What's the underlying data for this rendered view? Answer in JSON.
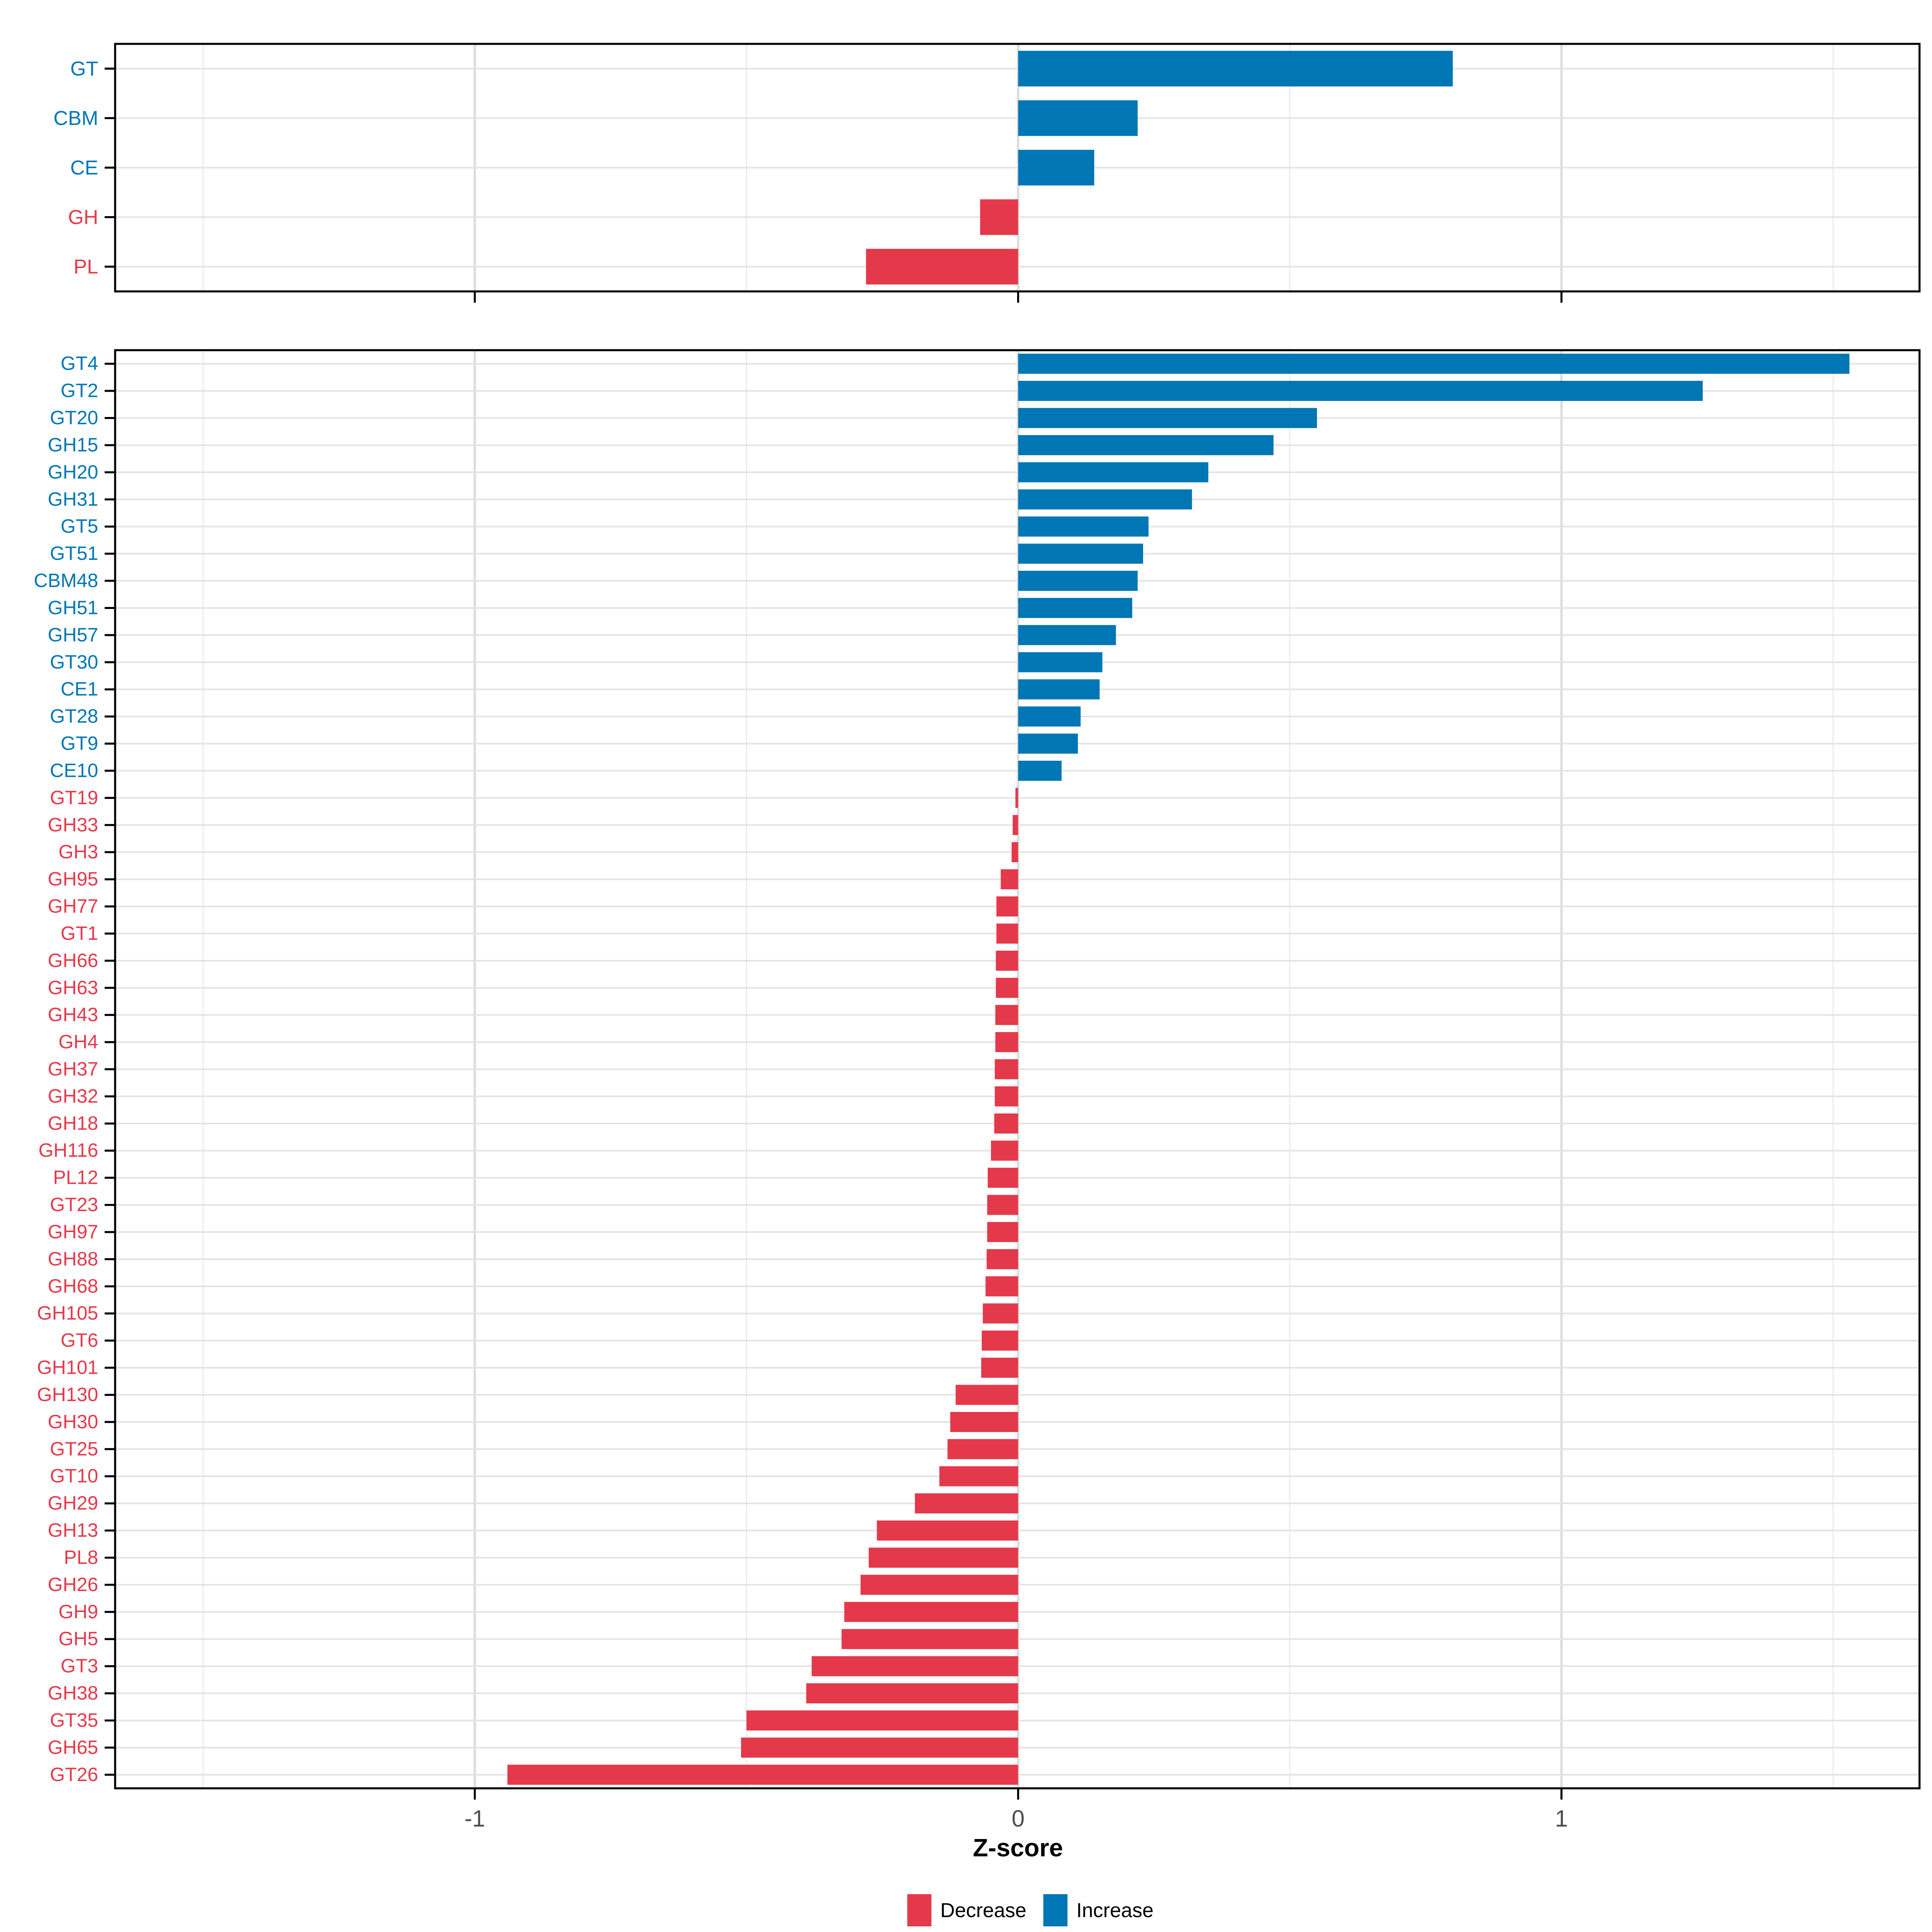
{
  "xlabel": "Z-score",
  "legend": {
    "position": "bottom-center",
    "items": [
      {
        "label": "Decrease",
        "color": "#E4394A"
      },
      {
        "label": "Increase",
        "color": "#0076B4"
      }
    ]
  },
  "colors": {
    "increase": "#0076B4",
    "decrease": "#E4394A",
    "label_increase": "#0076B4",
    "label_decrease": "#E4394A",
    "grid_major": "#DDDDDD",
    "grid_minor": "#EBEBEB",
    "grid_row": "#E3E3E3",
    "panel_border": "#000000",
    "tick": "#000000",
    "tick_label": "#4D4D4D",
    "background": "#FFFFFF"
  },
  "chart_data": [
    {
      "id": "cazyme-class-panel",
      "type": "bar",
      "orientation": "horizontal",
      "title": "",
      "xlabel": "",
      "ylabel": "",
      "xlim": [
        -1.662,
        1.659
      ],
      "grid": true,
      "x_major_gridlines": [
        -1,
        0,
        1
      ],
      "x_minor_gridlines": [
        -1.5,
        -0.5,
        0.5,
        1.5
      ],
      "x_ticks": [
        -1,
        0,
        1
      ],
      "x_tick_labels": [],
      "categories": [
        "GT",
        "CBM",
        "CE",
        "GH",
        "PL"
      ],
      "values": [
        0.8,
        0.22,
        0.14,
        -0.07,
        -0.28
      ]
    },
    {
      "id": "cazyme-family-panel",
      "type": "bar",
      "orientation": "horizontal",
      "title": "",
      "xlabel": "Z-score",
      "ylabel": "",
      "xlim": [
        -1.662,
        1.659
      ],
      "grid": true,
      "x_major_gridlines": [
        -1,
        0,
        1
      ],
      "x_minor_gridlines": [
        -1.5,
        -0.5,
        0.5,
        1.5
      ],
      "x_ticks": [
        -1,
        0,
        1
      ],
      "x_tick_labels": [
        "-1",
        "0",
        "1"
      ],
      "categories": [
        "GT4",
        "GT2",
        "GT20",
        "GH15",
        "GH20",
        "GH31",
        "GT5",
        "GT51",
        "CBM48",
        "GH51",
        "GH57",
        "GT30",
        "CE1",
        "GT28",
        "GT9",
        "CE10",
        "GT19",
        "GH33",
        "GH3",
        "GH95",
        "GH77",
        "GT1",
        "GH66",
        "GH63",
        "GH43",
        "GH4",
        "GH37",
        "GH32",
        "GH18",
        "GH116",
        "PL12",
        "GT23",
        "GH97",
        "GH88",
        "GH68",
        "GH105",
        "GT6",
        "GH101",
        "GH130",
        "GH30",
        "GT25",
        "GT10",
        "GH29",
        "GH13",
        "PL8",
        "GH26",
        "GH9",
        "GH5",
        "GT3",
        "GH38",
        "GT35",
        "GH65",
        "GT26"
      ],
      "values": [
        1.53,
        1.26,
        0.55,
        0.47,
        0.35,
        0.32,
        0.24,
        0.23,
        0.22,
        0.21,
        0.18,
        0.155,
        0.15,
        0.115,
        0.11,
        0.08,
        -0.005,
        -0.01,
        -0.012,
        -0.032,
        -0.04,
        -0.04,
        -0.041,
        -0.041,
        -0.042,
        -0.042,
        -0.043,
        -0.043,
        -0.044,
        -0.05,
        -0.056,
        -0.057,
        -0.057,
        -0.058,
        -0.06,
        -0.065,
        -0.067,
        -0.068,
        -0.115,
        -0.125,
        -0.13,
        -0.145,
        -0.19,
        -0.26,
        -0.275,
        -0.29,
        -0.32,
        -0.325,
        -0.38,
        -0.39,
        -0.5,
        -0.51,
        -0.94
      ]
    }
  ]
}
